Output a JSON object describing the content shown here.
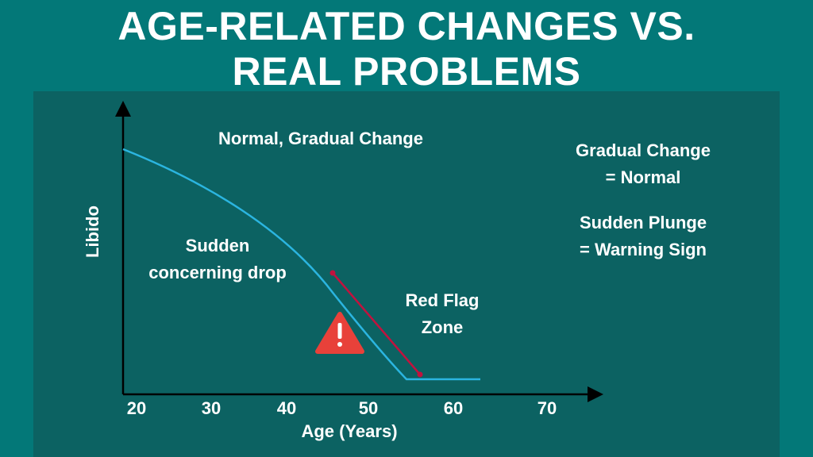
{
  "header": {
    "title_lines": [
      "AGE-RELATED CHANGES VS.",
      "REAL PROBLEMS"
    ]
  },
  "diagram": {
    "y_axis_label": "Libido",
    "x_axis_label": "Age (Years)",
    "x_tick_labels": [
      20,
      30,
      40,
      50,
      60,
      70
    ],
    "annotations": {
      "normal": "Normal, Gradual Change",
      "drop": [
        "Sudden",
        "concerning drop"
      ],
      "red_flag": [
        "Red Flag",
        "Zone"
      ]
    },
    "key": [
      [
        "Gradual Change",
        "= Normal"
      ],
      [
        "Sudden Plunge",
        "= Warning Sign"
      ]
    ]
  }
}
